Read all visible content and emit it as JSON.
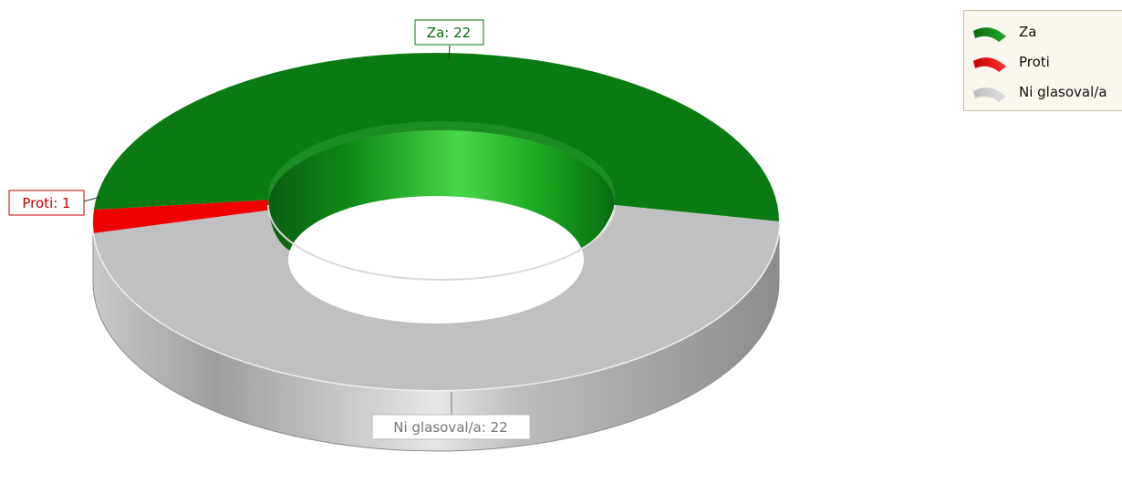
{
  "chart_data": {
    "type": "pie",
    "subtype": "3d-doughnut",
    "categories": [
      "Za",
      "Proti",
      "Ni glasoval/a"
    ],
    "values": [
      22,
      1,
      22
    ],
    "colors": [
      "#0a7a12",
      "#ee0000",
      "#c0c0c0"
    ],
    "data_labels": [
      "Za: 22",
      "Proti: 1",
      "Ni glasoval/a: 22"
    ],
    "legend": {
      "placement": "top-right",
      "entries": [
        "Za",
        "Proti",
        "Ni glasoval/a"
      ]
    }
  }
}
